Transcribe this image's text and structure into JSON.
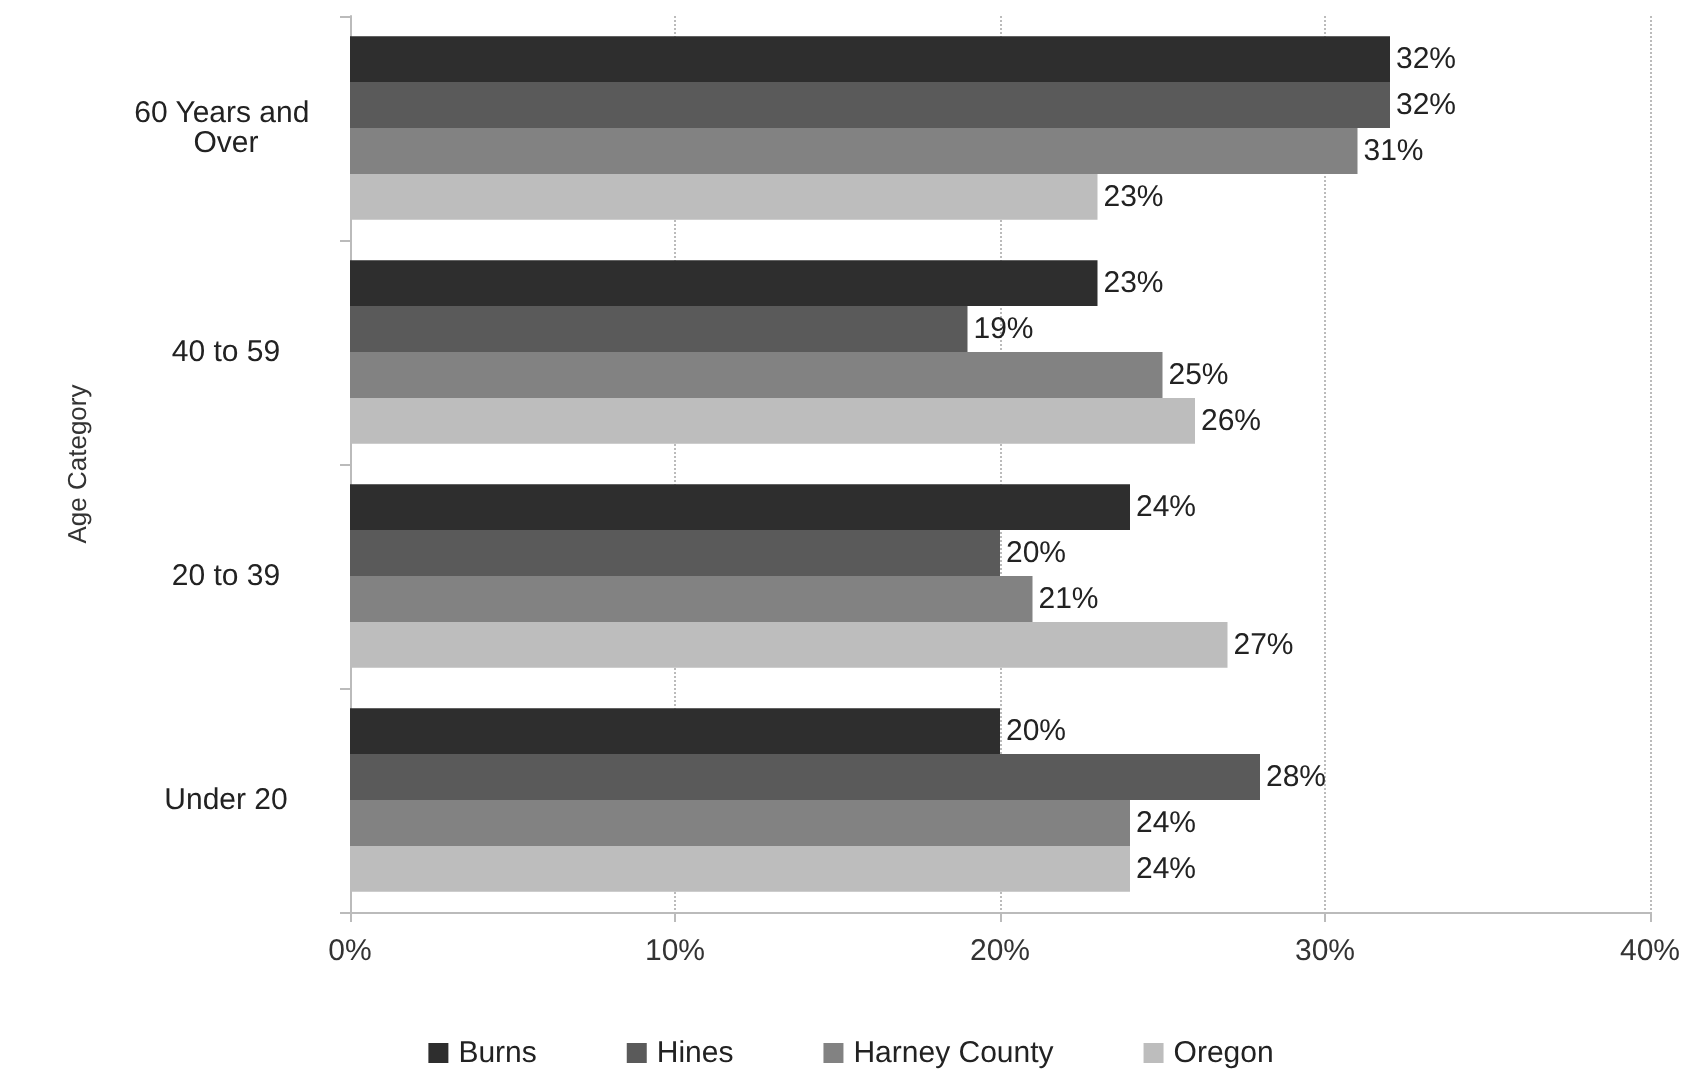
{
  "chart_data": {
    "type": "bar",
    "orientation": "horizontal",
    "ylabel": "Age Category",
    "categories": [
      "60 Years and Over",
      "40 to 59",
      "20 to 39",
      "Under 20"
    ],
    "series": [
      {
        "name": "Burns",
        "color": "#2e2e2e",
        "values": [
          32,
          23,
          24,
          20
        ],
        "value_labels": [
          "32%",
          "23%",
          "24%",
          "20%"
        ]
      },
      {
        "name": "Hines",
        "color": "#5a5a5a",
        "values": [
          32,
          19,
          20,
          28
        ],
        "value_labels": [
          "32%",
          "19%",
          "20%",
          "28%"
        ]
      },
      {
        "name": "Harney County",
        "color": "#828282",
        "values": [
          31,
          25,
          21,
          24
        ],
        "value_labels": [
          "31%",
          "25%",
          "21%",
          "24%"
        ]
      },
      {
        "name": "Oregon",
        "color": "#bdbdbd",
        "values": [
          23,
          26,
          27,
          24
        ],
        "value_labels": [
          "23%",
          "26%",
          "27%",
          "24%"
        ]
      }
    ],
    "xlim": [
      0,
      40
    ],
    "xticks": [
      {
        "value": 0,
        "label": "0%"
      },
      {
        "value": 10,
        "label": "10%"
      },
      {
        "value": 20,
        "label": "20%"
      },
      {
        "value": 30,
        "label": "30%"
      },
      {
        "value": 40,
        "label": "40%"
      }
    ],
    "grid": "x",
    "legend": "bottom"
  }
}
